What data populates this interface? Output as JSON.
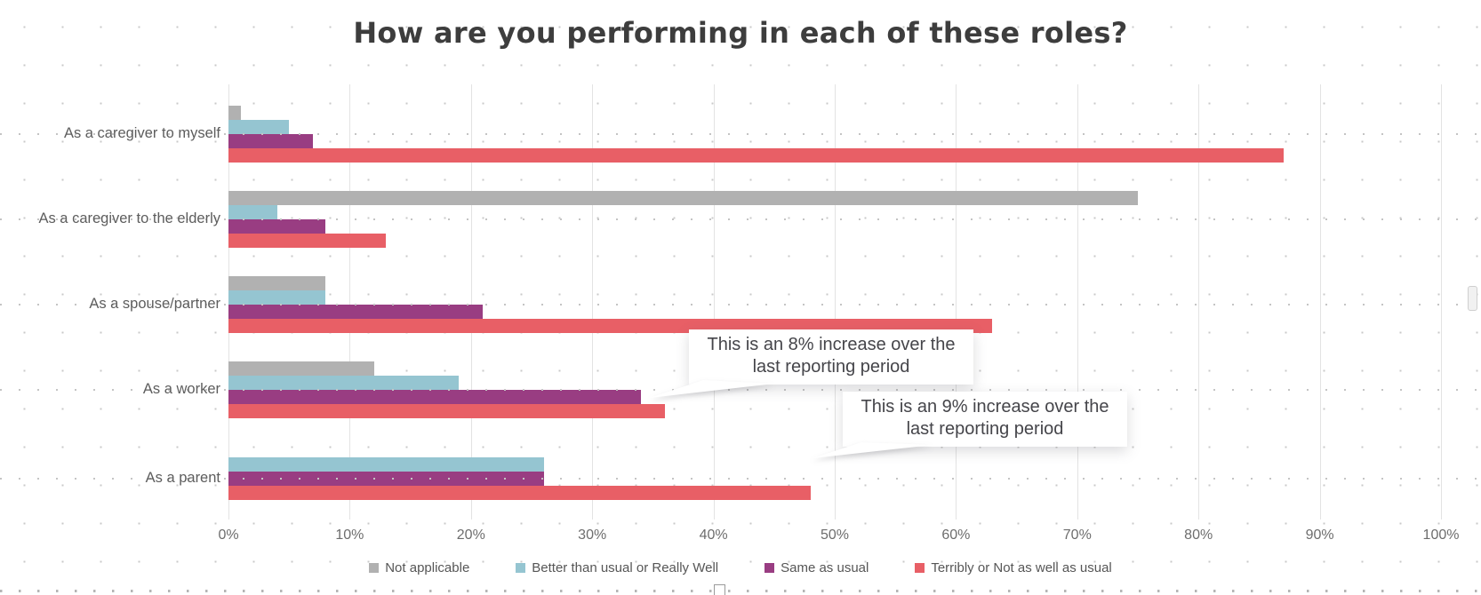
{
  "chart_data": {
    "type": "bar",
    "orientation": "horizontal",
    "title": "How are you performing in each of these roles?",
    "categories": [
      "As a caregiver to myself",
      "As a caregiver to the elderly",
      "As a spouse/partner",
      "As a worker",
      "As a parent"
    ],
    "series": [
      {
        "name": "Not applicable",
        "color": "#b1b1b1",
        "values": [
          1,
          75,
          8,
          12,
          null
        ]
      },
      {
        "name": "Better than usual or Really Well",
        "color": "#95c5d1",
        "values": [
          5,
          4,
          8,
          19,
          26
        ]
      },
      {
        "name": "Same as usual",
        "color": "#993d82",
        "values": [
          7,
          8,
          21,
          34,
          26
        ]
      },
      {
        "name": "Terribly or Not as well as usual",
        "color": "#e85f66",
        "values": [
          87,
          13,
          63,
          36,
          48
        ]
      }
    ],
    "xlabel": "",
    "ylabel": "",
    "x_axis": {
      "min": 0,
      "max": 100,
      "step": 10,
      "tick_labels": [
        "0%",
        "10%",
        "20%",
        "30%",
        "40%",
        "50%",
        "60%",
        "70%",
        "80%",
        "90%",
        "100%"
      ]
    },
    "grid": "vertical-only",
    "legend_position": "bottom",
    "annotations": [
      {
        "text": "This is an 8% increase over the last reporting period"
      },
      {
        "text": "This is an 9% increase over the last reporting period"
      }
    ]
  }
}
